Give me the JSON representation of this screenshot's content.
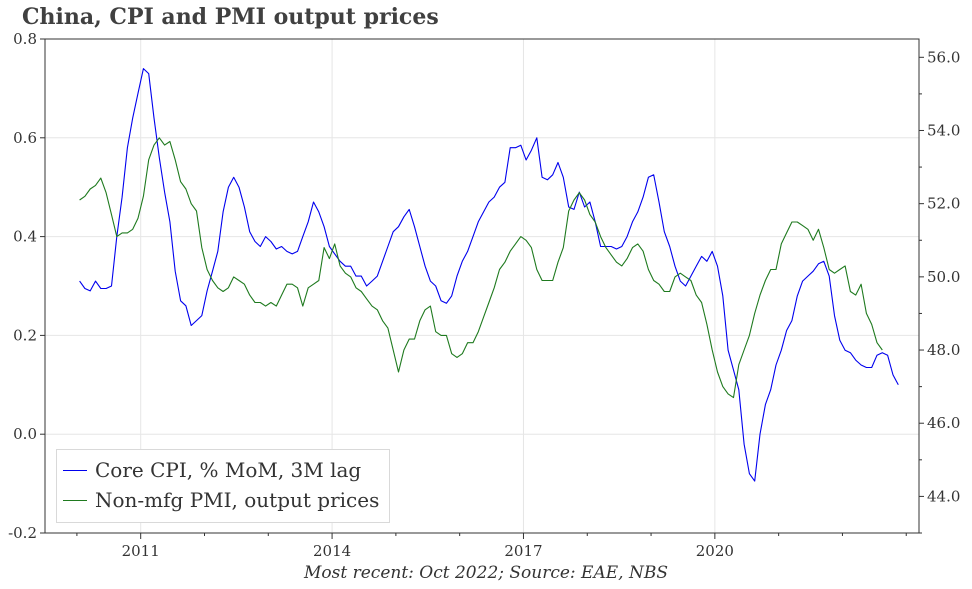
{
  "title": "China, CPI and PMI output prices",
  "source": "Most recent: Oct 2022; Source: EAE, NBS",
  "chart_data": {
    "type": "line",
    "x_start": "2010-01",
    "x_range": [
      2009.5,
      2023.2
    ],
    "x_ticks": [
      2011,
      2014,
      2017,
      2020
    ],
    "x_tick_labels": [
      "2011",
      "2014",
      "2017",
      "2020"
    ],
    "left_axis": {
      "range": [
        -0.2,
        0.8
      ],
      "ticks": [
        -0.2,
        0.0,
        0.2,
        0.4,
        0.6,
        0.8
      ],
      "tick_labels": [
        "-0.2",
        "0.0",
        "0.2",
        "0.4",
        "0.6",
        "0.8"
      ]
    },
    "right_axis": {
      "range": [
        43,
        56.5
      ],
      "ticks": [
        44,
        46,
        48,
        50,
        52,
        54,
        56
      ],
      "tick_labels": [
        "44.0",
        "46.0",
        "48.0",
        "50.0",
        "52.0",
        "54.0",
        "56.0"
      ]
    },
    "grid": true,
    "legend_position": "bottom-left",
    "series": [
      {
        "name": "Core CPI, % MoM, 3M lag",
        "axis": "left",
        "color": "#0000ee",
        "values": [
          0.31,
          0.295,
          0.29,
          0.31,
          0.295,
          0.295,
          0.3,
          0.4,
          0.48,
          0.58,
          0.64,
          0.69,
          0.74,
          0.73,
          0.64,
          0.56,
          0.49,
          0.43,
          0.33,
          0.27,
          0.26,
          0.22,
          0.23,
          0.24,
          0.29,
          0.33,
          0.37,
          0.45,
          0.5,
          0.52,
          0.5,
          0.46,
          0.41,
          0.39,
          0.38,
          0.4,
          0.39,
          0.375,
          0.38,
          0.37,
          0.365,
          0.37,
          0.4,
          0.43,
          0.47,
          0.45,
          0.42,
          0.38,
          0.365,
          0.35,
          0.34,
          0.34,
          0.32,
          0.32,
          0.3,
          0.31,
          0.32,
          0.35,
          0.38,
          0.41,
          0.42,
          0.44,
          0.455,
          0.42,
          0.38,
          0.34,
          0.31,
          0.3,
          0.27,
          0.265,
          0.28,
          0.32,
          0.35,
          0.37,
          0.4,
          0.43,
          0.45,
          0.47,
          0.48,
          0.5,
          0.51,
          0.58,
          0.58,
          0.585,
          0.555,
          0.575,
          0.6,
          0.52,
          0.515,
          0.525,
          0.55,
          0.52,
          0.46,
          0.455,
          0.49,
          0.46,
          0.47,
          0.43,
          0.38,
          0.38,
          0.38,
          0.375,
          0.38,
          0.4,
          0.43,
          0.45,
          0.48,
          0.52,
          0.525,
          0.47,
          0.41,
          0.38,
          0.34,
          0.31,
          0.3,
          0.32,
          0.34,
          0.36,
          0.35,
          0.37,
          0.34,
          0.28,
          0.17,
          0.13,
          0.09,
          -0.02,
          -0.08,
          -0.095,
          0.0,
          0.06,
          0.09,
          0.14,
          0.17,
          0.21,
          0.23,
          0.28,
          0.31,
          0.32,
          0.33,
          0.345,
          0.35,
          0.32,
          0.24,
          0.19,
          0.17,
          0.165,
          0.15,
          0.14,
          0.135,
          0.135,
          0.16,
          0.165,
          0.16,
          0.12,
          0.1
        ]
      },
      {
        "name": "Non-mfg PMI, output prices",
        "axis": "right",
        "color": "#1f7a1f",
        "values": [
          52.1,
          52.2,
          52.4,
          52.5,
          52.7,
          52.3,
          51.7,
          51.1,
          51.2,
          51.2,
          51.3,
          51.6,
          52.2,
          53.2,
          53.6,
          53.8,
          53.6,
          53.7,
          53.2,
          52.6,
          52.4,
          52.0,
          51.8,
          50.8,
          50.2,
          49.9,
          49.7,
          49.6,
          49.7,
          50.0,
          49.9,
          49.8,
          49.5,
          49.3,
          49.3,
          49.2,
          49.3,
          49.2,
          49.5,
          49.8,
          49.8,
          49.7,
          49.2,
          49.7,
          49.8,
          49.9,
          50.8,
          50.5,
          50.9,
          50.3,
          50.1,
          50.0,
          49.7,
          49.6,
          49.4,
          49.2,
          49.1,
          48.8,
          48.6,
          48.0,
          47.4,
          48.0,
          48.3,
          48.3,
          48.8,
          49.1,
          49.2,
          48.5,
          48.4,
          48.4,
          47.9,
          47.8,
          47.9,
          48.2,
          48.2,
          48.5,
          48.9,
          49.3,
          49.7,
          50.2,
          50.4,
          50.7,
          50.9,
          51.1,
          51.0,
          50.8,
          50.2,
          49.9,
          49.9,
          49.9,
          50.4,
          50.8,
          51.8,
          52.1,
          52.3,
          52.1,
          51.7,
          51.5,
          51.1,
          50.8,
          50.6,
          50.4,
          50.3,
          50.5,
          50.8,
          50.9,
          50.7,
          50.2,
          49.9,
          49.8,
          49.6,
          49.6,
          50.0,
          50.1,
          50.0,
          49.9,
          49.5,
          49.3,
          48.7,
          48.0,
          47.4,
          47.0,
          46.8,
          46.7,
          47.6,
          48.0,
          48.4,
          49.0,
          49.5,
          49.9,
          50.2,
          50.2,
          50.9,
          51.2,
          51.5,
          51.5,
          51.4,
          51.3,
          51.0,
          51.3,
          50.8,
          50.2,
          50.1,
          50.2,
          50.3,
          49.6,
          49.5,
          49.8,
          49.0,
          48.7,
          48.2,
          48.0
        ]
      }
    ]
  }
}
